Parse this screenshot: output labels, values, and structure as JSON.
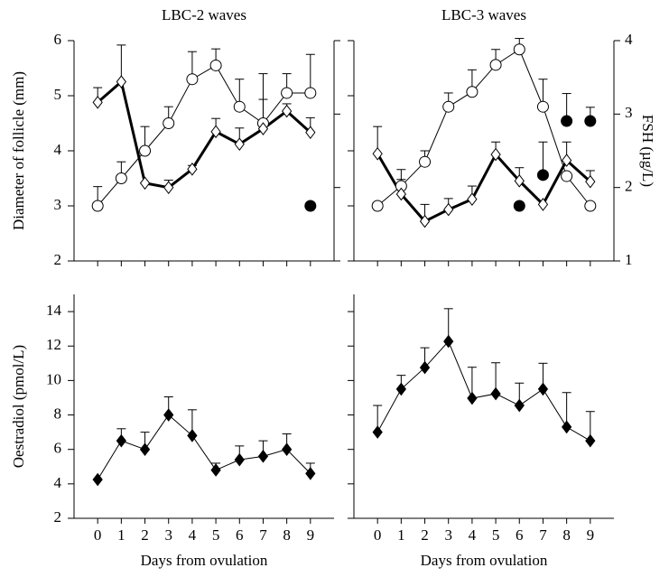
{
  "chart_data": [
    {
      "type": "line",
      "title": "LBC-2 waves",
      "ylabel": "Diameter of follicle (mm)",
      "x": [
        0,
        1,
        2,
        3,
        4,
        5,
        6,
        7,
        8,
        9
      ],
      "xlim": [
        -1,
        10
      ],
      "ylim": [
        2,
        6
      ],
      "yticks": [
        2,
        3,
        4,
        5,
        6
      ],
      "ytick_labels": true,
      "y2lim": [
        1,
        4
      ],
      "y2ticks": [
        1,
        2,
        3,
        4
      ],
      "y2tick_labels": false,
      "series": [
        {
          "marker": "circle",
          "fill": "#ffffff",
          "color": "#000000",
          "line_width": 1,
          "axis": "y",
          "values": [
            3.0,
            3.5,
            4.0,
            4.5,
            5.3,
            5.55,
            4.8,
            4.5,
            5.05,
            5.05
          ],
          "errors": [
            0.35,
            0.3,
            0.44,
            0.3,
            0.5,
            0.3,
            0.5,
            0.9,
            0.35,
            0.7
          ]
        },
        {
          "marker": "diamond",
          "fill": "#ffffff",
          "color": "#000000",
          "line_width": 3,
          "axis": "y2",
          "values": [
            3.16,
            3.44,
            2.06,
            2.0,
            2.25,
            2.76,
            2.59,
            2.8,
            3.04,
            2.75
          ],
          "errors": [
            0.2,
            0.5,
            null,
            0.1,
            0.05,
            0.18,
            0.22,
            0.4,
            0.1,
            0.2
          ]
        },
        {
          "marker": "circle",
          "fill": "#000000",
          "color": "#000000",
          "line_width": 0,
          "axis": "y",
          "values": [
            null,
            null,
            null,
            null,
            null,
            null,
            null,
            null,
            null,
            3.0
          ]
        }
      ]
    },
    {
      "type": "line",
      "title": "LBC-3 waves",
      "y2label": "FSH (µg/L)",
      "x": [
        0,
        1,
        2,
        3,
        4,
        5,
        6,
        7,
        8,
        9
      ],
      "xlim": [
        -1,
        10
      ],
      "ylim": [
        2,
        6
      ],
      "yticks": [
        2,
        3,
        4,
        5,
        6
      ],
      "ytick_labels": false,
      "y2lim": [
        1,
        4
      ],
      "y2ticks": [
        1,
        2,
        3,
        4
      ],
      "y2tick_labels": true,
      "series": [
        {
          "marker": "circle",
          "fill": "#ffffff",
          "color": "#000000",
          "line_width": 1,
          "axis": "y",
          "values": [
            3.0,
            3.36,
            3.8,
            4.8,
            5.07,
            5.56,
            5.84,
            4.8,
            3.54,
            3.0
          ],
          "errors": [
            null,
            0.3,
            0.2,
            0.25,
            0.4,
            0.28,
            0.2,
            0.5,
            null,
            null
          ]
        },
        {
          "marker": "diamond",
          "fill": "#ffffff",
          "color": "#000000",
          "line_width": 3,
          "axis": "y2",
          "values": [
            2.46,
            1.91,
            1.54,
            1.7,
            1.84,
            2.45,
            2.09,
            1.77,
            2.37,
            2.08
          ],
          "errors": [
            0.37,
            0.2,
            0.23,
            0.15,
            0.18,
            0.17,
            0.18,
            null,
            0.25,
            0.15
          ]
        },
        {
          "marker": "circle",
          "fill": "#000000",
          "color": "#000000",
          "line_width": 0,
          "axis": "y",
          "values": [
            null,
            null,
            null,
            null,
            null,
            null,
            3.0,
            3.56,
            4.54,
            4.54
          ],
          "errors": [
            null,
            null,
            null,
            null,
            null,
            null,
            null,
            0.6,
            0.5,
            0.25
          ]
        }
      ]
    },
    {
      "type": "line",
      "ylabel": "Oestradiol (pmol/L)",
      "xlabel": "Days from ovulation",
      "x": [
        0,
        1,
        2,
        3,
        4,
        5,
        6,
        7,
        8,
        9
      ],
      "xlim": [
        -1,
        10
      ],
      "xticks": [
        0,
        1,
        2,
        3,
        4,
        5,
        6,
        7,
        8,
        9
      ],
      "ylim": [
        2,
        15
      ],
      "yticks": [
        2,
        4,
        6,
        8,
        10,
        12,
        14
      ],
      "ytick_labels": true,
      "series": [
        {
          "marker": "diamond",
          "fill": "#000000",
          "color": "#000000",
          "line_width": 1,
          "axis": "y",
          "values": [
            4.25,
            6.5,
            6.0,
            8.0,
            6.8,
            4.8,
            5.4,
            5.6,
            6.0,
            4.6
          ],
          "errors": [
            null,
            0.7,
            1.0,
            1.05,
            1.5,
            0.4,
            0.8,
            0.9,
            0.9,
            0.6
          ]
        }
      ]
    },
    {
      "type": "line",
      "xlabel": "Days from ovulation",
      "x": [
        0,
        1,
        2,
        3,
        4,
        5,
        6,
        7,
        8,
        9
      ],
      "xlim": [
        -1,
        10
      ],
      "xticks": [
        0,
        1,
        2,
        3,
        4,
        5,
        6,
        7,
        8,
        9
      ],
      "ylim": [
        2,
        15
      ],
      "yticks": [
        2,
        4,
        6,
        8,
        10,
        12,
        14
      ],
      "ytick_labels": false,
      "series": [
        {
          "marker": "diamond",
          "fill": "#000000",
          "color": "#000000",
          "line_width": 1,
          "axis": "y",
          "values": [
            7.0,
            9.5,
            10.75,
            12.27,
            8.97,
            9.23,
            8.55,
            9.5,
            7.3,
            6.5
          ],
          "errors": [
            1.55,
            0.8,
            1.15,
            1.9,
            1.8,
            1.8,
            1.3,
            1.5,
            2.0,
            1.7
          ]
        }
      ]
    }
  ]
}
